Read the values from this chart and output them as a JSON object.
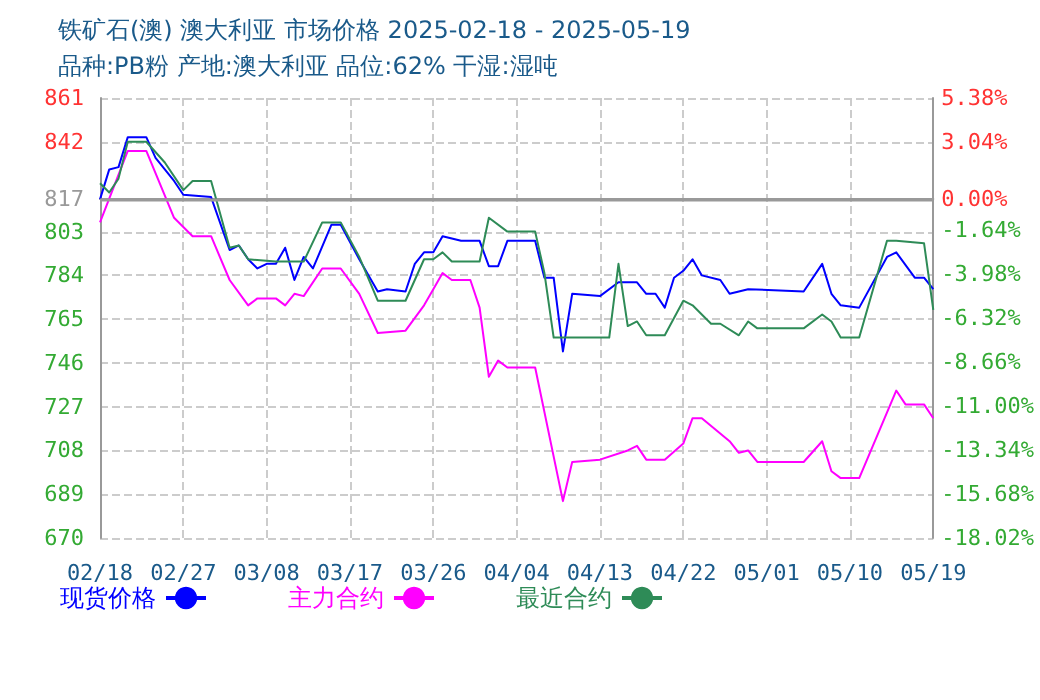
{
  "chart_data": {
    "type": "line",
    "title": "铁矿石(澳) 澳大利亚 市场价格 2025-02-18 - 2025-05-19",
    "subtitle": "品种:PB粉 产地:澳大利亚 品位:62% 干湿:湿吨",
    "xlim": [
      "2025-02-18",
      "2025-05-19"
    ],
    "xticks": [
      {
        "value": "2025-02-18",
        "label": "02/18"
      },
      {
        "value": "2025-02-27",
        "label": "02/27"
      },
      {
        "value": "2025-03-08",
        "label": "03/08"
      },
      {
        "value": "2025-03-17",
        "label": "03/17"
      },
      {
        "value": "2025-03-26",
        "label": "03/26"
      },
      {
        "value": "2025-04-04",
        "label": "04/04"
      },
      {
        "value": "2025-04-13",
        "label": "04/13"
      },
      {
        "value": "2025-04-22",
        "label": "04/22"
      },
      {
        "value": "2025-05-01",
        "label": "05/01"
      },
      {
        "value": "2025-05-10",
        "label": "05/10"
      },
      {
        "value": "2025-05-19",
        "label": "05/19"
      }
    ],
    "ylim": [
      670,
      861
    ],
    "yticks": [
      670,
      689,
      708,
      727,
      746,
      765,
      784,
      803,
      817,
      842,
      861
    ],
    "y2lim": [
      -18.02,
      5.38
    ],
    "y2ticks": [
      {
        "value": -18.02,
        "label": "-18.02%"
      },
      {
        "value": -15.68,
        "label": "-15.68%"
      },
      {
        "value": -13.34,
        "label": "-13.34%"
      },
      {
        "value": -11.0,
        "label": "-11.00%"
      },
      {
        "value": -8.66,
        "label": "-8.66%"
      },
      {
        "value": -6.32,
        "label": "-6.32%"
      },
      {
        "value": -3.98,
        "label": "-3.98%"
      },
      {
        "value": -1.64,
        "label": "-1.64%"
      },
      {
        "value": 0,
        "label": "0.00%"
      },
      {
        "value": 3.04,
        "label": "3.04%"
      },
      {
        "value": 5.38,
        "label": "5.38%"
      }
    ],
    "ref_lines": [
      {
        "axis": "y",
        "value": 817,
        "color": "#999999",
        "line_style": "solid"
      }
    ],
    "grid": true,
    "legend": "bottom",
    "marker": "none",
    "line_style": "solid",
    "series": [
      {
        "name": "现货价格",
        "color": "#0000ff",
        "x": [
          "2025-02-18",
          "2025-02-19",
          "2025-02-20",
          "2025-02-21",
          "2025-02-23",
          "2025-02-24",
          "2025-02-26",
          "2025-02-27",
          "2025-03-02",
          "2025-03-04",
          "2025-03-05",
          "2025-03-06",
          "2025-03-07",
          "2025-03-08",
          "2025-03-09",
          "2025-03-10",
          "2025-03-11",
          "2025-03-12",
          "2025-03-13",
          "2025-03-15",
          "2025-03-16",
          "2025-03-18",
          "2025-03-20",
          "2025-03-21",
          "2025-03-23",
          "2025-03-24",
          "2025-03-25",
          "2025-03-26",
          "2025-03-27",
          "2025-03-29",
          "2025-03-31",
          "2025-04-01",
          "2025-04-02",
          "2025-04-03",
          "2025-04-06",
          "2025-04-07",
          "2025-04-08",
          "2025-04-09",
          "2025-04-10",
          "2025-04-13",
          "2025-04-15",
          "2025-04-17",
          "2025-04-18",
          "2025-04-19",
          "2025-04-20",
          "2025-04-21",
          "2025-04-22",
          "2025-04-23",
          "2025-04-24",
          "2025-04-26",
          "2025-04-27",
          "2025-04-29",
          "2025-05-05",
          "2025-05-07",
          "2025-05-08",
          "2025-05-09",
          "2025-05-11",
          "2025-05-14",
          "2025-05-15",
          "2025-05-17",
          "2025-05-18",
          "2025-05-19"
        ],
        "values": [
          817,
          830,
          831,
          844,
          844,
          835,
          825,
          819,
          818,
          795,
          797,
          791,
          787,
          789,
          789,
          796,
          782,
          792,
          787,
          806,
          806,
          791,
          777,
          778,
          777,
          789,
          794,
          794,
          801,
          799,
          799,
          788,
          788,
          799,
          799,
          783,
          783,
          751,
          776,
          775,
          781,
          781,
          776,
          776,
          770,
          783,
          786,
          791,
          784,
          782,
          776,
          778,
          777,
          789,
          776,
          771,
          770,
          792,
          794,
          783,
          783,
          778
        ]
      },
      {
        "name": "主力合约",
        "color": "#ff00ff",
        "x": [
          "2025-02-18",
          "2025-02-21",
          "2025-02-23",
          "2025-02-26",
          "2025-02-28",
          "2025-03-02",
          "2025-03-04",
          "2025-03-06",
          "2025-03-07",
          "2025-03-09",
          "2025-03-10",
          "2025-03-11",
          "2025-03-12",
          "2025-03-14",
          "2025-03-16",
          "2025-03-18",
          "2025-03-20",
          "2025-03-23",
          "2025-03-25",
          "2025-03-26",
          "2025-03-27",
          "2025-03-28",
          "2025-03-30",
          "2025-03-31",
          "2025-04-01",
          "2025-04-02",
          "2025-04-03",
          "2025-04-06",
          "2025-04-09",
          "2025-04-10",
          "2025-04-13",
          "2025-04-16",
          "2025-04-17",
          "2025-04-18",
          "2025-04-20",
          "2025-04-22",
          "2025-04-23",
          "2025-04-24",
          "2025-04-27",
          "2025-04-28",
          "2025-04-29",
          "2025-04-30",
          "2025-05-05",
          "2025-05-07",
          "2025-05-08",
          "2025-05-09",
          "2025-05-11",
          "2025-05-15",
          "2025-05-16",
          "2025-05-18",
          "2025-05-19"
        ],
        "values": [
          807,
          838,
          838,
          809,
          801,
          801,
          782,
          771,
          774,
          774,
          771,
          776,
          775,
          787,
          787,
          776,
          759,
          760,
          771,
          778,
          785,
          782,
          782,
          770,
          740,
          747,
          744,
          744,
          686,
          703,
          704,
          708,
          710,
          704,
          704,
          711,
          722,
          722,
          712,
          707,
          708,
          703,
          703,
          712,
          699,
          696,
          696,
          734,
          728,
          728,
          722
        ]
      },
      {
        "name": "最近合约",
        "color": "#2e8b57",
        "x": [
          "2025-02-18",
          "2025-02-19",
          "2025-02-20",
          "2025-02-21",
          "2025-02-23",
          "2025-02-25",
          "2025-02-27",
          "2025-02-28",
          "2025-03-02",
          "2025-03-04",
          "2025-03-05",
          "2025-03-06",
          "2025-03-09",
          "2025-03-12",
          "2025-03-14",
          "2025-03-16",
          "2025-03-18",
          "2025-03-20",
          "2025-03-23",
          "2025-03-25",
          "2025-03-26",
          "2025-03-27",
          "2025-03-28",
          "2025-03-31",
          "2025-04-01",
          "2025-04-03",
          "2025-04-06",
          "2025-04-07",
          "2025-04-08",
          "2025-04-14",
          "2025-04-15",
          "2025-04-16",
          "2025-04-17",
          "2025-04-18",
          "2025-04-20",
          "2025-04-22",
          "2025-04-23",
          "2025-04-25",
          "2025-04-26",
          "2025-04-28",
          "2025-04-29",
          "2025-04-30",
          "2025-05-05",
          "2025-05-07",
          "2025-05-08",
          "2025-05-09",
          "2025-05-11",
          "2025-05-14",
          "2025-05-15",
          "2025-05-18",
          "2025-05-19"
        ],
        "values": [
          824,
          820,
          826,
          842,
          842,
          833,
          821,
          825,
          825,
          796,
          797,
          791,
          790,
          790,
          807,
          807,
          792,
          773,
          773,
          791,
          791,
          794,
          790,
          790,
          809,
          803,
          803,
          785,
          757,
          757,
          789,
          762,
          764,
          758,
          758,
          773,
          771,
          763,
          763,
          758,
          764,
          761,
          761,
          767,
          764,
          757,
          757,
          799,
          799,
          798,
          769
        ]
      }
    ]
  }
}
